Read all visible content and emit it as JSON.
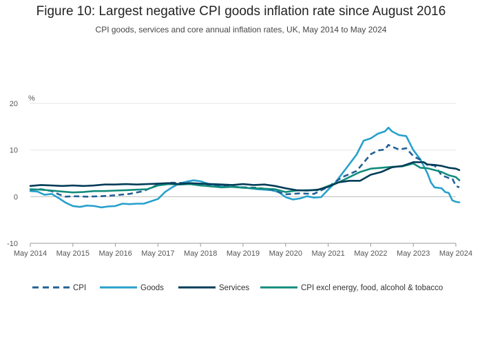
{
  "chart_data": {
    "type": "line",
    "title": "Figure 10: Largest negative CPI goods inflation rate since August 2016",
    "subtitle": "CPI goods, services and core annual inflation rates, UK, May 2014 to May 2024",
    "ylabel": "%",
    "ylim": [
      -10,
      20
    ],
    "yticks": [
      -10,
      0,
      10,
      20
    ],
    "xticks": [
      "May 2014",
      "May 2015",
      "May 2016",
      "May 2017",
      "May 2018",
      "May 2019",
      "May 2020",
      "May 2021",
      "May 2022",
      "May 2023",
      "May 2024"
    ],
    "x_start": "2014-05",
    "x_end": "2024-05",
    "grid": "horizontal",
    "legend_position": "bottom",
    "series": [
      {
        "name": "CPI",
        "color": "#206095",
        "dash": true,
        "values": [
          [
            0,
            1.5
          ],
          [
            3,
            1.6
          ],
          [
            6,
            1.2
          ],
          [
            8,
            0.5
          ],
          [
            10,
            0
          ],
          [
            12,
            0.1
          ],
          [
            16,
            0
          ],
          [
            20,
            0.1
          ],
          [
            24,
            0.3
          ],
          [
            28,
            0.6
          ],
          [
            32,
            1.2
          ],
          [
            36,
            2.6
          ],
          [
            40,
            3.0
          ],
          [
            44,
            2.9
          ],
          [
            48,
            2.4
          ],
          [
            52,
            2.5
          ],
          [
            56,
            2.2
          ],
          [
            60,
            2.0
          ],
          [
            64,
            1.9
          ],
          [
            68,
            1.5
          ],
          [
            72,
            0.5
          ],
          [
            76,
            0.7
          ],
          [
            80,
            0.6
          ],
          [
            84,
            2.1
          ],
          [
            88,
            4.2
          ],
          [
            92,
            5.5
          ],
          [
            96,
            9.1
          ],
          [
            98,
            9.9
          ],
          [
            100,
            10.1
          ],
          [
            101,
            11.1
          ],
          [
            102,
            10.7
          ],
          [
            104,
            10.1
          ],
          [
            106,
            10.4
          ],
          [
            108,
            8.7
          ],
          [
            110,
            7.9
          ],
          [
            112,
            6.8
          ],
          [
            114,
            6.7
          ],
          [
            116,
            4.6
          ],
          [
            118,
            4.0
          ],
          [
            119,
            3.9
          ],
          [
            120,
            2.3
          ],
          [
            121,
            2.0
          ]
        ]
      },
      {
        "name": "Goods",
        "color": "#27a0cc",
        "dash": false,
        "values": [
          [
            0,
            1.2
          ],
          [
            2,
            1.1
          ],
          [
            4,
            0.4
          ],
          [
            6,
            0.6
          ],
          [
            8,
            -0.3
          ],
          [
            10,
            -1.3
          ],
          [
            12,
            -2.0
          ],
          [
            14,
            -2.2
          ],
          [
            16,
            -1.9
          ],
          [
            18,
            -2.0
          ],
          [
            20,
            -2.3
          ],
          [
            22,
            -2.1
          ],
          [
            24,
            -2.0
          ],
          [
            26,
            -1.5
          ],
          [
            28,
            -1.6
          ],
          [
            30,
            -1.5
          ],
          [
            32,
            -1.5
          ],
          [
            34,
            -1.0
          ],
          [
            36,
            -0.5
          ],
          [
            38,
            1.0
          ],
          [
            40,
            2.0
          ],
          [
            42,
            2.8
          ],
          [
            44,
            3.2
          ],
          [
            46,
            3.5
          ],
          [
            48,
            3.3
          ],
          [
            50,
            2.8
          ],
          [
            52,
            2.5
          ],
          [
            56,
            2.1
          ],
          [
            60,
            2.0
          ],
          [
            64,
            1.6
          ],
          [
            68,
            1.4
          ],
          [
            70,
            1.0
          ],
          [
            72,
            -0.1
          ],
          [
            74,
            -0.6
          ],
          [
            76,
            -0.4
          ],
          [
            78,
            0.1
          ],
          [
            80,
            -0.2
          ],
          [
            82,
            -0.1
          ],
          [
            84,
            1.5
          ],
          [
            86,
            3.0
          ],
          [
            88,
            5.0
          ],
          [
            90,
            7.0
          ],
          [
            92,
            9.0
          ],
          [
            94,
            12.0
          ],
          [
            96,
            12.5
          ],
          [
            98,
            13.5
          ],
          [
            100,
            14.0
          ],
          [
            101,
            14.8
          ],
          [
            102,
            14.0
          ],
          [
            104,
            13.2
          ],
          [
            106,
            13.0
          ],
          [
            108,
            10.0
          ],
          [
            110,
            8.0
          ],
          [
            111,
            6.5
          ],
          [
            112,
            5.0
          ],
          [
            113,
            3.0
          ],
          [
            114,
            2.0
          ],
          [
            116,
            1.8
          ],
          [
            117,
            1.0
          ],
          [
            118,
            0.8
          ],
          [
            119,
            -0.8
          ],
          [
            120,
            -1.1
          ],
          [
            121,
            -1.2
          ]
        ]
      },
      {
        "name": "Services",
        "color": "#003c57",
        "dash": false,
        "values": [
          [
            0,
            2.3
          ],
          [
            3,
            2.5
          ],
          [
            6,
            2.4
          ],
          [
            9,
            2.3
          ],
          [
            12,
            2.4
          ],
          [
            15,
            2.3
          ],
          [
            18,
            2.4
          ],
          [
            21,
            2.6
          ],
          [
            24,
            2.6
          ],
          [
            27,
            2.7
          ],
          [
            30,
            2.6
          ],
          [
            33,
            2.7
          ],
          [
            36,
            2.8
          ],
          [
            39,
            2.9
          ],
          [
            42,
            2.7
          ],
          [
            45,
            2.9
          ],
          [
            48,
            2.8
          ],
          [
            51,
            2.7
          ],
          [
            54,
            2.6
          ],
          [
            57,
            2.5
          ],
          [
            60,
            2.7
          ],
          [
            63,
            2.5
          ],
          [
            66,
            2.6
          ],
          [
            69,
            2.3
          ],
          [
            72,
            1.8
          ],
          [
            75,
            1.4
          ],
          [
            78,
            1.3
          ],
          [
            81,
            1.5
          ],
          [
            84,
            2.1
          ],
          [
            87,
            3.1
          ],
          [
            90,
            3.4
          ],
          [
            93,
            3.4
          ],
          [
            96,
            4.7
          ],
          [
            99,
            5.3
          ],
          [
            102,
            6.3
          ],
          [
            105,
            6.6
          ],
          [
            108,
            7.4
          ],
          [
            111,
            7.4
          ],
          [
            112,
            6.9
          ],
          [
            114,
            6.8
          ],
          [
            116,
            6.6
          ],
          [
            118,
            6.2
          ],
          [
            120,
            6.0
          ],
          [
            121,
            5.7
          ]
        ]
      },
      {
        "name": "CPI excl energy, food, alcohol & tobacco",
        "color": "#118c7b",
        "dash": false,
        "values": [
          [
            0,
            1.6
          ],
          [
            3,
            1.5
          ],
          [
            6,
            1.3
          ],
          [
            9,
            1.1
          ],
          [
            12,
            0.9
          ],
          [
            15,
            1.0
          ],
          [
            18,
            1.2
          ],
          [
            21,
            1.2
          ],
          [
            24,
            1.3
          ],
          [
            27,
            1.4
          ],
          [
            30,
            1.5
          ],
          [
            33,
            1.6
          ],
          [
            36,
            2.4
          ],
          [
            39,
            2.7
          ],
          [
            42,
            2.6
          ],
          [
            45,
            2.7
          ],
          [
            48,
            2.4
          ],
          [
            51,
            2.2
          ],
          [
            54,
            2.0
          ],
          [
            57,
            2.1
          ],
          [
            60,
            1.9
          ],
          [
            63,
            1.8
          ],
          [
            66,
            1.7
          ],
          [
            69,
            1.6
          ],
          [
            72,
            1.0
          ],
          [
            75,
            1.3
          ],
          [
            78,
            1.4
          ],
          [
            81,
            1.4
          ],
          [
            84,
            2.3
          ],
          [
            87,
            3.1
          ],
          [
            90,
            4.2
          ],
          [
            93,
            5.3
          ],
          [
            96,
            6.0
          ],
          [
            99,
            6.2
          ],
          [
            102,
            6.4
          ],
          [
            105,
            6.5
          ],
          [
            108,
            7.1
          ],
          [
            110,
            6.2
          ],
          [
            112,
            6.1
          ],
          [
            114,
            5.7
          ],
          [
            116,
            5.3
          ],
          [
            118,
            4.6
          ],
          [
            120,
            4.2
          ],
          [
            121,
            3.5
          ]
        ]
      }
    ]
  }
}
